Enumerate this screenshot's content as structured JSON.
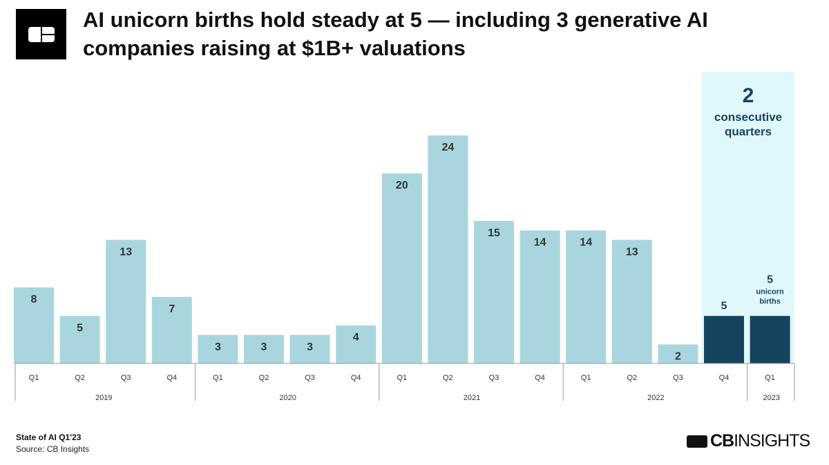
{
  "title": "AI unicorn births hold steady at 5 — including 3 generative AI companies raising at $1B+ valuations",
  "footer": {
    "report": "State of AI Q1'23",
    "source": "Source: CB Insights",
    "brand_bold": "CB",
    "brand_light": "INSIGHTS"
  },
  "colors": {
    "bar": "#a9d6de",
    "highlight_bar": "#15445e",
    "highlight_bg": "#e0f8fc",
    "label": "#333333",
    "highlight_label": "#15445e"
  },
  "chart_data": {
    "type": "bar",
    "quarters": [
      "Q1",
      "Q2",
      "Q3",
      "Q4",
      "Q1",
      "Q2",
      "Q3",
      "Q4",
      "Q1",
      "Q2",
      "Q3",
      "Q4",
      "Q1",
      "Q2",
      "Q3",
      "Q4",
      "Q1"
    ],
    "years": [
      {
        "label": "2019",
        "count": 4
      },
      {
        "label": "2020",
        "count": 4
      },
      {
        "label": "2021",
        "count": 4
      },
      {
        "label": "2022",
        "count": 4
      },
      {
        "label": "2023",
        "count": 1
      }
    ],
    "values": [
      8,
      5,
      13,
      7,
      3,
      3,
      3,
      4,
      20,
      24,
      15,
      14,
      14,
      13,
      2,
      5,
      5
    ],
    "highlight_indices": [
      15,
      16
    ],
    "ylim": [
      0,
      24
    ],
    "annotation": {
      "number": "2",
      "text1": "consecutive",
      "text2": "quarters"
    },
    "last_bar_note": [
      "unicorn",
      "births"
    ]
  }
}
